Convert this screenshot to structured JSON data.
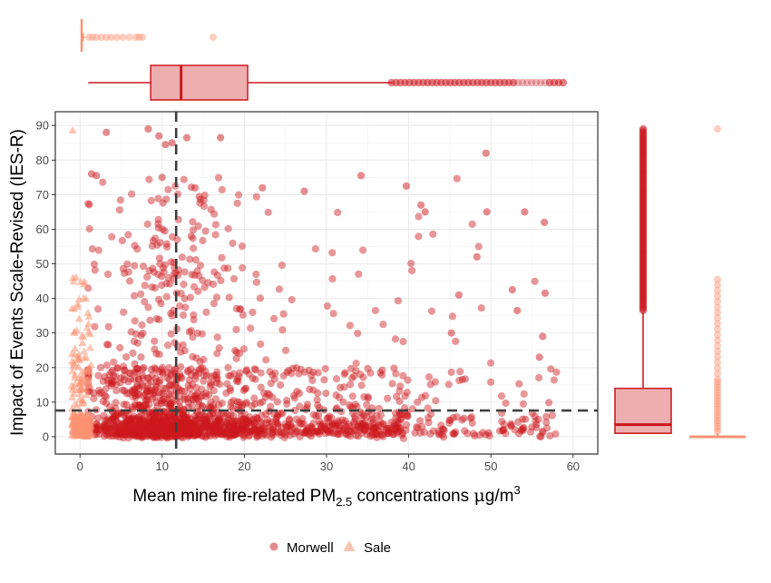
{
  "chart_data": {
    "type": "scatter",
    "xlabel": {
      "pre": "Mean mine fire-related PM",
      "sub": "2.5",
      "mid": " concentrations ",
      "mu": "μ",
      "unit": "g/m",
      "sup": "3"
    },
    "ylabel": "Impact of Events Scale-Revised (IES-R)",
    "xlim": [
      -3,
      63
    ],
    "ylim": [
      -5,
      94
    ],
    "x_ticks": [
      0,
      10,
      20,
      30,
      40,
      50,
      60
    ],
    "y_ticks": [
      0,
      10,
      20,
      30,
      40,
      50,
      60,
      70,
      80,
      90
    ],
    "grid": true,
    "reference_lines": {
      "x_mean": 11.7,
      "y_mean": 7.6
    },
    "legend_position": "bottom",
    "series": [
      {
        "name": "Morwell",
        "marker": "circle",
        "color": "#cb181d",
        "x_range": [
          1,
          59
        ],
        "box_x": {
          "min": 1,
          "q1": 8.6,
          "median": 12.3,
          "q3": 20.4,
          "upper_whisker": 38,
          "max_outlier": 59
        },
        "box_y": {
          "min": 0,
          "q1": 1,
          "median": 3.5,
          "q3": 14,
          "upper_whisker": 36,
          "max_outlier": 89
        },
        "sample_points": [
          [
            3.2,
            88
          ],
          [
            8.3,
            89
          ],
          [
            9.6,
            87
          ],
          [
            10.4,
            84.5
          ],
          [
            11.2,
            85
          ],
          [
            13.0,
            86.5
          ],
          [
            1.4,
            76
          ],
          [
            2.0,
            75.5
          ],
          [
            10.0,
            75
          ],
          [
            14.0,
            72
          ],
          [
            17.1,
            86.5
          ],
          [
            22.2,
            72
          ],
          [
            27.3,
            71
          ],
          [
            34.2,
            75.5
          ],
          [
            39.7,
            72.5
          ],
          [
            49.4,
            82
          ],
          [
            54.1,
            65
          ],
          [
            56.5,
            62
          ],
          [
            41.5,
            67
          ],
          [
            42.0,
            65
          ],
          [
            48.3,
            52
          ],
          [
            46.1,
            41
          ],
          [
            45.2,
            30
          ],
          [
            56.3,
            29
          ],
          [
            55.9,
            23
          ],
          [
            53.2,
            36.5
          ],
          [
            52.6,
            42.5
          ],
          [
            56.6,
            41.5
          ],
          [
            49.5,
            65
          ]
        ]
      },
      {
        "name": "Sale",
        "marker": "triangle",
        "color": "#fc9272",
        "x_range": [
          -1,
          1.5
        ],
        "box_x": {
          "min": 0.2,
          "q1": 0.2,
          "median": 0.2,
          "q3": 0.3,
          "upper_whisker": 0.6,
          "max_outlier": 16.2
        },
        "box_y": {
          "min": 0,
          "q1": 0,
          "median": 0,
          "q3": 0.5,
          "upper_whisker": 1,
          "max_outlier": 89
        },
        "sample_points": [
          [
            -0.9,
            88.5
          ],
          [
            -0.5,
            46
          ],
          [
            0.5,
            44
          ],
          [
            -0.7,
            30
          ],
          [
            0.3,
            27
          ],
          [
            -0.2,
            20
          ],
          [
            0.8,
            12
          ]
        ]
      }
    ]
  },
  "colors": {
    "morwell": "#cb181d",
    "sale": "#fc9272",
    "ref_line": "#404040",
    "panel_border": "#333333"
  }
}
